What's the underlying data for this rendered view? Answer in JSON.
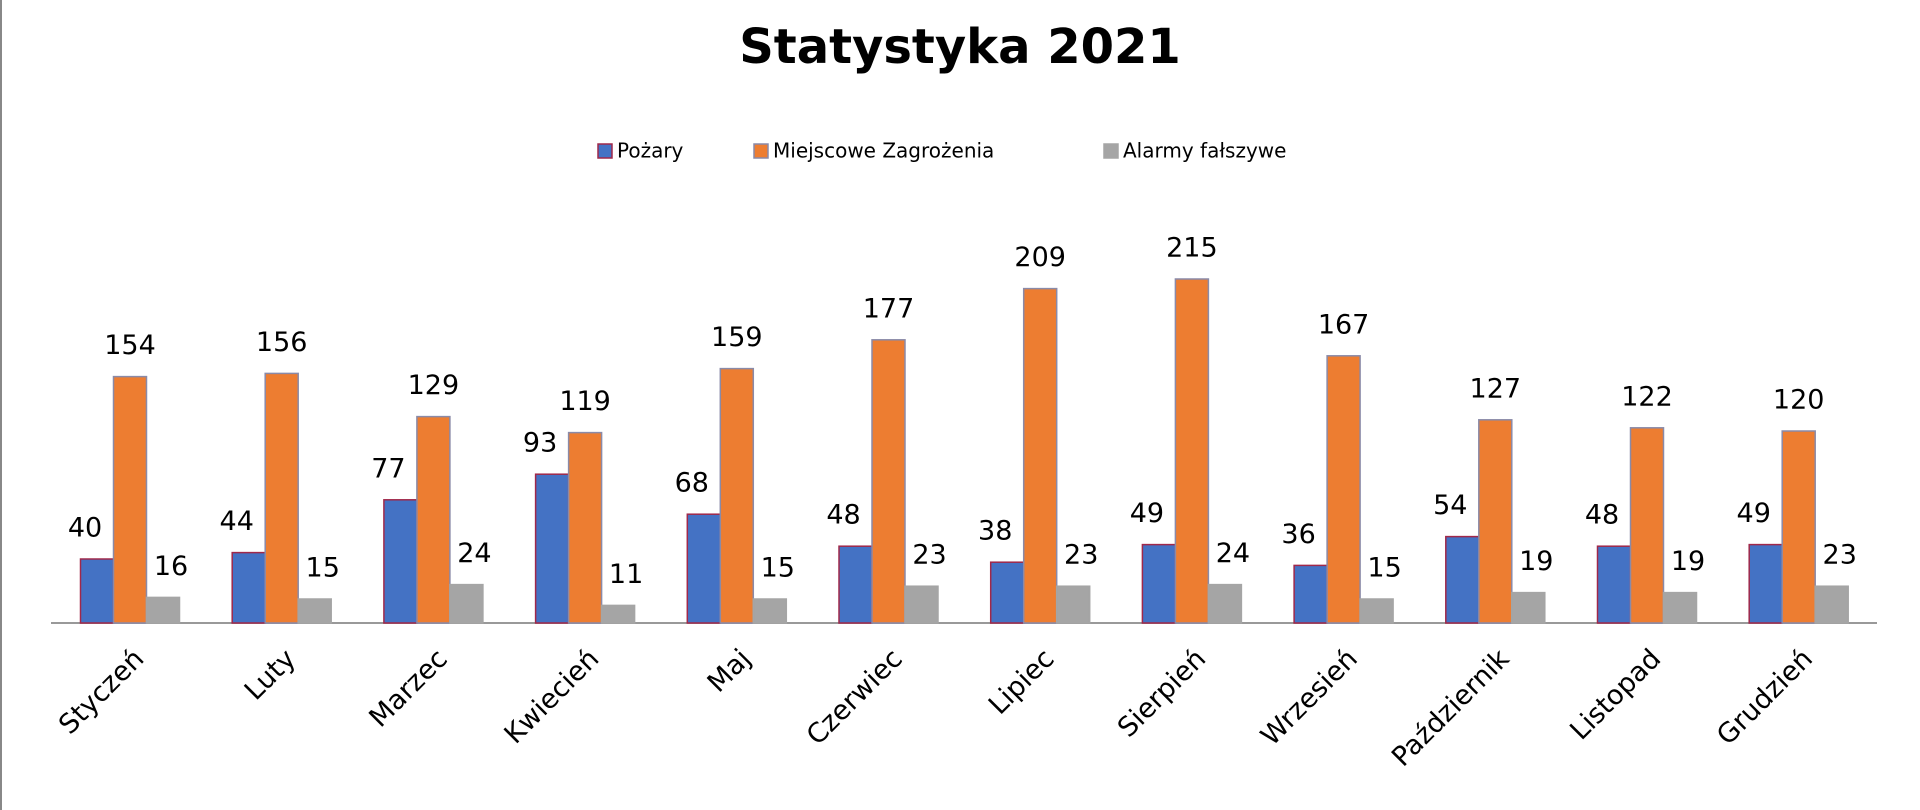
{
  "chart_data": {
    "type": "bar",
    "title": "Statystyka 2021",
    "categories": [
      "Styczeń",
      "Luty",
      "Marzec",
      "Kwiecień",
      "Maj",
      "Czerwiec",
      "Lipiec",
      "Sierpień",
      "Wrzesień",
      "Październik",
      "Listopad",
      "Grudzień"
    ],
    "series": [
      {
        "name": "Pożary",
        "color": "#4472c4",
        "values": [
          40,
          44,
          77,
          93,
          68,
          48,
          38,
          49,
          36,
          54,
          48,
          49
        ]
      },
      {
        "name": "Miejscowe  Zagrożenia",
        "color": "#ed7d31",
        "values": [
          154,
          156,
          129,
          119,
          159,
          177,
          209,
          215,
          167,
          127,
          122,
          120
        ]
      },
      {
        "name": "Alarmy fałszywe",
        "color": "#a5a5a5",
        "values": [
          16,
          15,
          24,
          11,
          15,
          23,
          23,
          24,
          15,
          19,
          19,
          23
        ]
      }
    ]
  }
}
